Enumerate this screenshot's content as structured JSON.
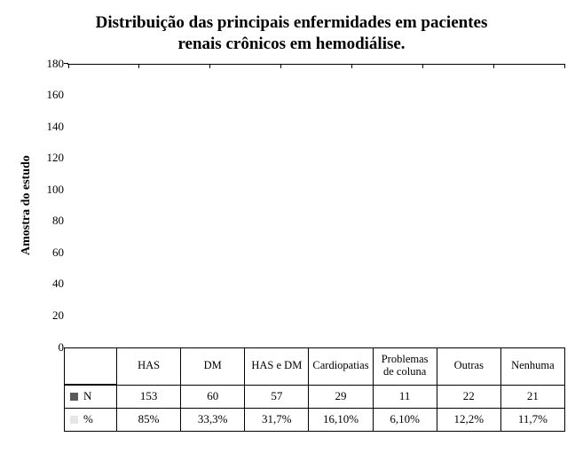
{
  "chart": {
    "type": "bar",
    "title_line1": "Distribuição das principais enfermidades em pacientes",
    "title_line2": "renais crônicos em hemodiálise.",
    "title_fontsize": 19,
    "title_weight": "bold",
    "ylabel": "Amostra do estudo",
    "ylabel_fontsize": 14,
    "ylabel_weight": "bold",
    "ylim": [
      0,
      180
    ],
    "ytick_step": 20,
    "yticks": [
      0,
      20,
      40,
      60,
      80,
      100,
      120,
      140,
      160,
      180
    ],
    "categories": [
      "HAS",
      "DM",
      "HAS e DM",
      "Cardiopatias",
      "Problemas de coluna",
      "Outras",
      "Nenhuma"
    ],
    "series": [
      {
        "key": "N",
        "label": "N",
        "color": "#595959",
        "values": [
          153,
          60,
          57,
          29,
          11,
          22,
          21
        ],
        "display": [
          "153",
          "60",
          "57",
          "29",
          "11",
          "22",
          "21"
        ]
      },
      {
        "key": "pct",
        "label": "%",
        "color": "#e6e6e6",
        "values": [
          0.85,
          0.333,
          0.317,
          0.161,
          0.061,
          0.122,
          0.117
        ],
        "display": [
          "85%",
          "33,3%",
          "31,7%",
          "16,10%",
          "6,10%",
          "12,2%",
          "11,7%"
        ]
      }
    ],
    "bar_width_primary": 0.36,
    "bar_width_secondary": 0.08,
    "background_color": "#ffffff",
    "axis_color": "#000000",
    "tick_fontsize": 13,
    "category_fontsize": 12.5,
    "table_border_color": "#000000"
  }
}
